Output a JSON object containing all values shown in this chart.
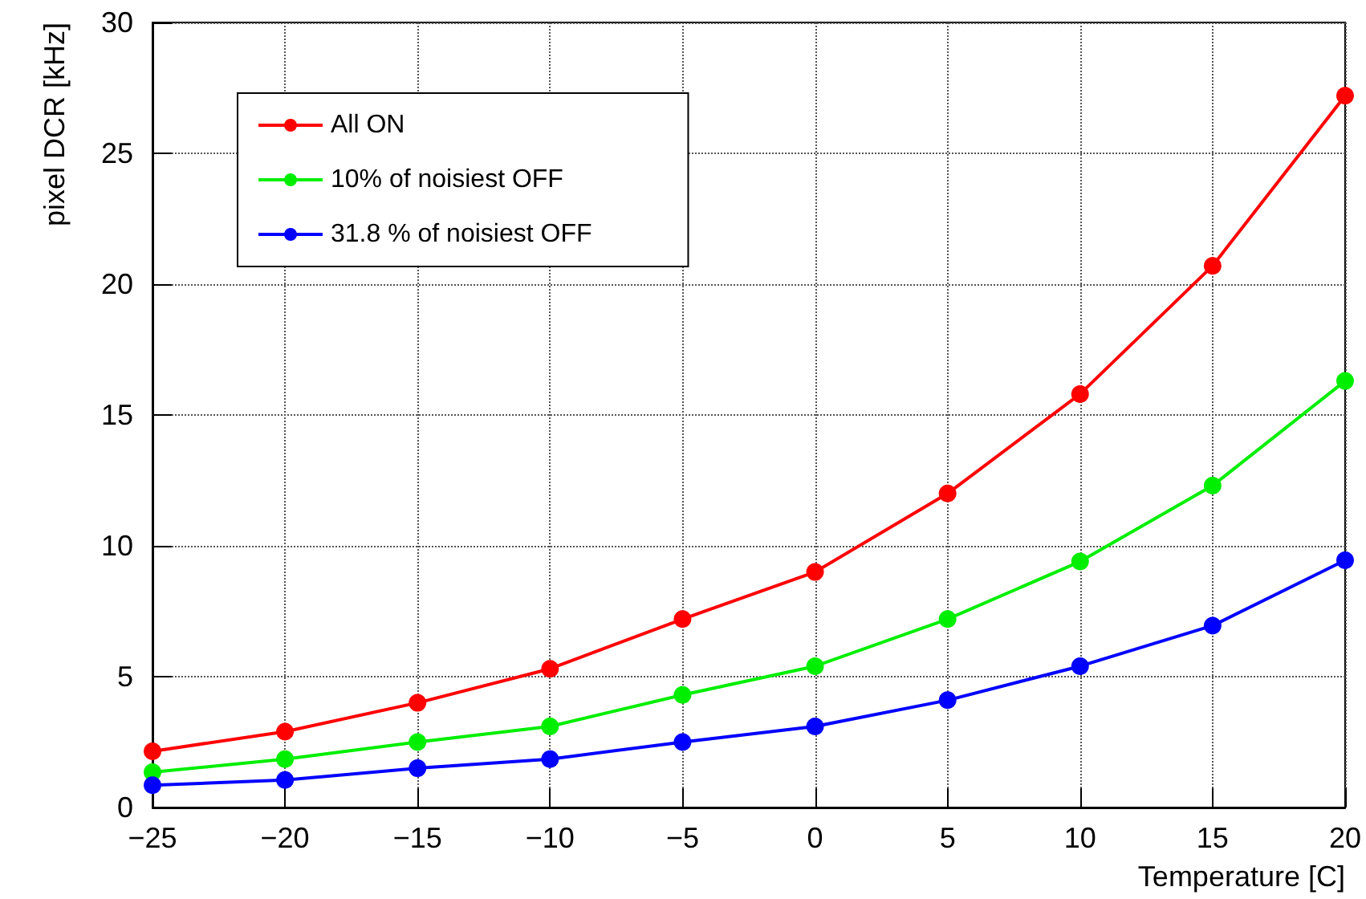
{
  "chart_data": {
    "type": "line",
    "xlabel": "Temperature [C]",
    "ylabel": "pixel DCR [kHz]",
    "x": [
      -25,
      -20,
      -15,
      -10,
      -5,
      0,
      5,
      10,
      15,
      20
    ],
    "series": [
      {
        "name": "All ON",
        "color": "#ff0000",
        "values": [
          2.15,
          2.9,
          4.0,
          5.3,
          7.2,
          9.0,
          12.0,
          15.8,
          20.7,
          27.2
        ]
      },
      {
        "name": "10% of noisiest OFF",
        "color": "#00ee00",
        "values": [
          1.35,
          1.85,
          2.5,
          3.1,
          4.3,
          5.4,
          7.2,
          9.4,
          12.3,
          16.3
        ]
      },
      {
        "name": "31.8 % of noisiest OFF",
        "color": "#0000ff",
        "values": [
          0.85,
          1.05,
          1.5,
          1.85,
          2.5,
          3.1,
          4.1,
          5.4,
          6.95,
          9.45
        ]
      }
    ],
    "xlim": [
      -25,
      20
    ],
    "xticks": [
      -25,
      -20,
      -15,
      -10,
      -5,
      0,
      5,
      10,
      15,
      20
    ],
    "ylim": [
      0,
      30
    ],
    "yticks": [
      0,
      5,
      10,
      15,
      20,
      25,
      30
    ],
    "grid": true,
    "legend": "top left",
    "marker": "circle",
    "line_style": "solid"
  }
}
